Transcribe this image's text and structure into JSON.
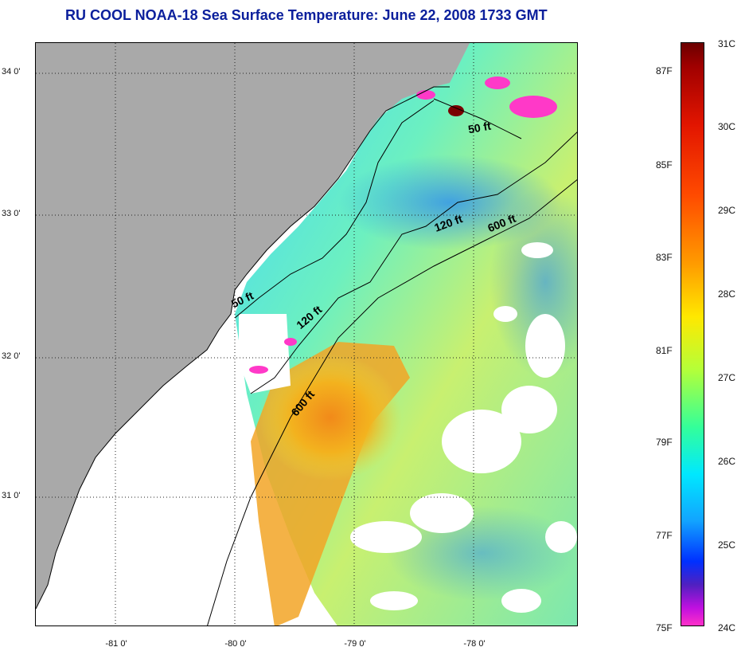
{
  "title": "RU COOL  NOAA-18  Sea Surface Temperature:  June 22, 2008 1733 GMT",
  "map": {
    "lat_ticks": [
      "34 0'",
      "33 0'",
      "32 0'",
      "31 0'"
    ],
    "lon_ticks": [
      "-81 0'",
      "-80 0'",
      "-79 0'",
      "-78 0'"
    ],
    "isobath_labels": [
      "50 ft",
      "50 ft",
      "120 ft",
      "120 ft",
      "600 ft",
      "600 ft"
    ],
    "colors": {
      "land": "#a9a9a9",
      "cloud_or_nodata": "#ffffff",
      "coast_line": "#000000"
    }
  },
  "colorbar": {
    "fahrenheit_labels": [
      "87F",
      "85F",
      "83F",
      "81F",
      "79F",
      "77F",
      "75F"
    ],
    "celsius_labels": [
      "31C",
      "30C",
      "29C",
      "28C",
      "27C",
      "26C",
      "25C",
      "24C"
    ]
  }
}
